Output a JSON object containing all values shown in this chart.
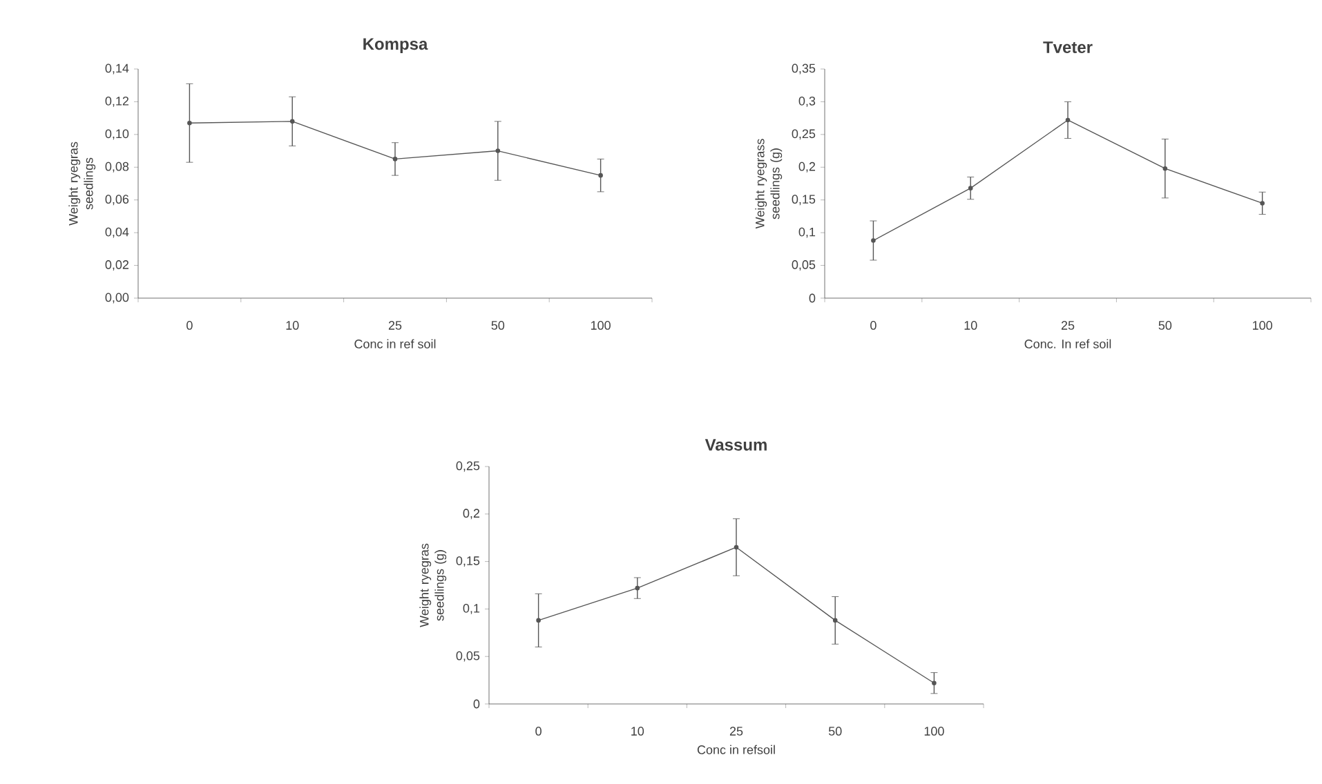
{
  "chart_data": [
    {
      "type": "line",
      "title": "Kompsa",
      "xlabel": "Conc in ref soil",
      "ylabel": "Weight ryegras seedlings",
      "categories": [
        "0",
        "10",
        "25",
        "50",
        "100"
      ],
      "series": [
        {
          "color": "#555555",
          "values": [
            0.107,
            0.108,
            0.085,
            0.09,
            0.075
          ],
          "errors": [
            0.024,
            0.015,
            0.01,
            0.018,
            0.01
          ]
        }
      ],
      "ylim": [
        0,
        0.14
      ],
      "yticks": [
        {
          "value": 0,
          "label": "0,00"
        },
        {
          "value": 0.02,
          "label": "0,02"
        },
        {
          "value": 0.04,
          "label": "0,04"
        },
        {
          "value": 0.06,
          "label": "0,06"
        },
        {
          "value": 0.08,
          "label": "0,08"
        },
        {
          "value": 0.1,
          "label": "0,10"
        },
        {
          "value": 0.12,
          "label": "0,12"
        },
        {
          "value": 0.14,
          "label": "0,14"
        }
      ],
      "marker": "circle",
      "line_style": "solid"
    },
    {
      "type": "line",
      "title": "Tveter",
      "xlabel": "Conc. In ref soil",
      "ylabel": "Weight ryegrass seedlings (g)",
      "categories": [
        "0",
        "10",
        "25",
        "50",
        "100"
      ],
      "series": [
        {
          "color": "#555555",
          "values": [
            0.088,
            0.168,
            0.272,
            0.198,
            0.145
          ],
          "errors": [
            0.03,
            0.017,
            0.028,
            0.045,
            0.017
          ]
        }
      ],
      "ylim": [
        0,
        0.35
      ],
      "yticks": [
        0,
        {
          "value": 0.05,
          "label": "0,05"
        },
        {
          "value": 0.1,
          "label": "0,1"
        },
        {
          "value": 0.15,
          "label": "0,15"
        },
        {
          "value": 0.2,
          "label": "0,2"
        },
        {
          "value": 0.25,
          "label": "0,25"
        },
        {
          "value": 0.3,
          "label": "0,3"
        },
        {
          "value": 0.35,
          "label": "0,35"
        }
      ],
      "marker": "circle",
      "line_style": "solid"
    },
    {
      "type": "line",
      "title": "Vassum",
      "xlabel": "Conc in refsoil",
      "ylabel": "Weight ryegras seedlings (g)",
      "categories": [
        "0",
        "10",
        "25",
        "50",
        "100"
      ],
      "series": [
        {
          "color": "#555555",
          "values": [
            0.088,
            0.122,
            0.165,
            0.088,
            0.022
          ],
          "errors": [
            0.028,
            0.011,
            0.03,
            0.025,
            0.011
          ]
        }
      ],
      "ylim": [
        0,
        0.25
      ],
      "yticks": [
        0,
        {
          "value": 0.05,
          "label": "0,05"
        },
        {
          "value": 0.1,
          "label": "0,1"
        },
        {
          "value": 0.15,
          "label": "0,15"
        },
        {
          "value": 0.2,
          "label": "0,2"
        },
        {
          "value": 0.25,
          "label": "0,25"
        }
      ],
      "marker": "circle",
      "line_style": "solid"
    }
  ]
}
